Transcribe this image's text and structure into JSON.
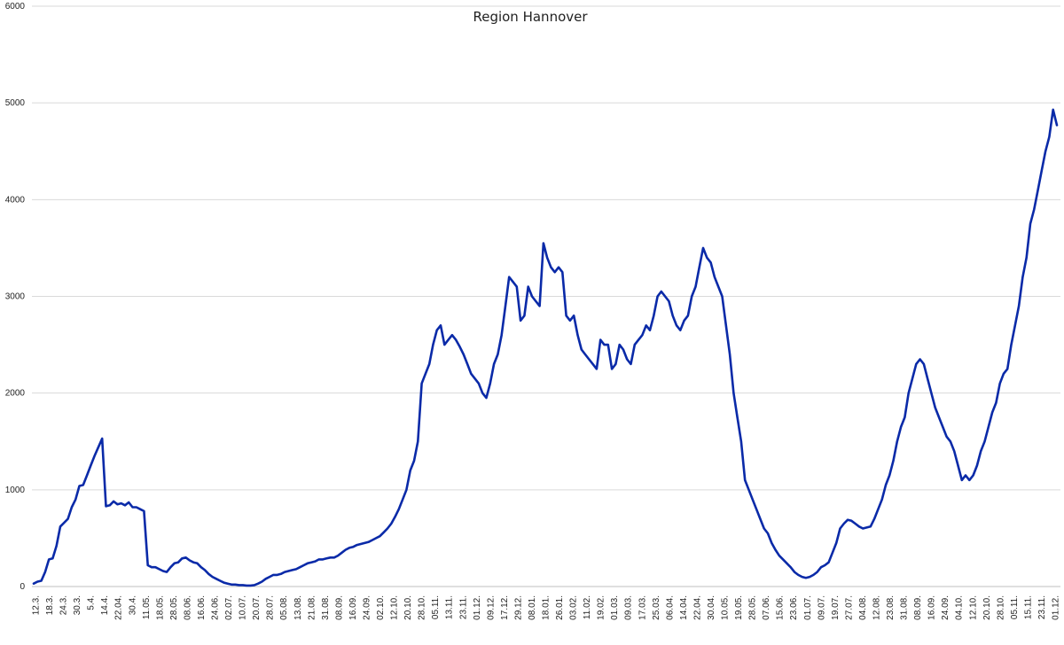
{
  "chart_data": {
    "type": "line",
    "title": "Region Hannover",
    "xlabel": "",
    "ylabel": "",
    "ylim": [
      0,
      6000
    ],
    "yticks": [
      0,
      1000,
      2000,
      3000,
      4000,
      5000,
      6000
    ],
    "grid": true,
    "legend": "none",
    "line_color": "#0a2aa8",
    "x_tick_labels": [
      "12.3.",
      "18.3.",
      "24.3.",
      "30.3.",
      "5.4.",
      "14.4.",
      "22.04.",
      "30.4.",
      "11.05.",
      "18.05.",
      "28.05.",
      "08.06.",
      "16.06.",
      "24.06.",
      "02.07.",
      "10.07.",
      "20.07.",
      "28.07.",
      "05.08.",
      "13.08.",
      "21.08.",
      "31.08.",
      "08.09.",
      "16.09.",
      "24.09.",
      "02.10.",
      "12.10.",
      "20.10.",
      "28.10.",
      "05.11.",
      "13.11.",
      "23.11.",
      "01.12.",
      "09.12.",
      "17.12.",
      "29.12.",
      "08.01.",
      "18.01.",
      "26.01.",
      "03.02.",
      "11.02.",
      "19.02.",
      "01.03.",
      "09.03.",
      "17.03.",
      "25.03.",
      "06.04.",
      "14.04.",
      "22.04.",
      "30.04.",
      "10.05.",
      "19.05.",
      "28.05.",
      "07.06.",
      "15.06.",
      "23.06.",
      "01.07.",
      "09.07.",
      "19.07.",
      "27.07.",
      "04.08.",
      "12.08.",
      "23.08.",
      "31.08.",
      "08.09.",
      "16.09.",
      "24.09.",
      "04.10.",
      "12.10.",
      "20.10.",
      "28.10.",
      "05.11.",
      "15.11.",
      "23.11.",
      "01.12."
    ],
    "series": [
      {
        "values": [
          30,
          50,
          60,
          150,
          280,
          290,
          420,
          620,
          660,
          700,
          820,
          900,
          1040,
          1050,
          1150,
          1250,
          1350,
          1440,
          1530,
          830,
          840,
          880,
          850,
          860,
          840,
          870,
          820,
          820,
          800,
          780,
          220,
          200,
          200,
          180,
          160,
          150,
          200,
          240,
          250,
          290,
          300,
          270,
          250,
          240,
          200,
          170,
          130,
          100,
          80,
          60,
          40,
          30,
          20,
          20,
          15,
          15,
          10,
          10,
          15,
          30,
          50,
          80,
          100,
          120,
          120,
          130,
          150,
          160,
          170,
          180,
          200,
          220,
          240,
          250,
          260,
          280,
          280,
          290,
          300,
          300,
          320,
          350,
          380,
          400,
          410,
          430,
          440,
          450,
          460,
          480,
          500,
          520,
          560,
          600,
          650,
          720,
          800,
          900,
          1000,
          1200,
          1300,
          1500,
          2100,
          2200,
          2300,
          2500,
          2650,
          2700,
          2500,
          2550,
          2600,
          2550,
          2480,
          2400,
          2300,
          2200,
          2150,
          2100,
          2000,
          1950,
          2100,
          2300,
          2400,
          2600,
          2900,
          3200,
          3150,
          3100,
          2750,
          2800,
          3100,
          3000,
          2950,
          2900,
          3550,
          3400,
          3300,
          3250,
          3300,
          3250,
          2800,
          2750,
          2800,
          2600,
          2450,
          2400,
          2350,
          2300,
          2250,
          2550,
          2500,
          2500,
          2250,
          2300,
          2500,
          2450,
          2350,
          2300,
          2500,
          2550,
          2600,
          2700,
          2650,
          2800,
          3000,
          3050,
          3000,
          2950,
          2800,
          2700,
          2650,
          2750,
          2800,
          3000,
          3100,
          3300,
          3500,
          3400,
          3350,
          3200,
          3100,
          3000,
          2700,
          2400,
          2000,
          1750,
          1500,
          1100,
          1000,
          900,
          800,
          700,
          600,
          550,
          450,
          380,
          320,
          280,
          240,
          200,
          150,
          120,
          100,
          90,
          100,
          120,
          150,
          200,
          220,
          250,
          350,
          450,
          600,
          650,
          690,
          680,
          650,
          620,
          600,
          610,
          620,
          700,
          800,
          900,
          1050,
          1150,
          1300,
          1500,
          1650,
          1750,
          2000,
          2150,
          2300,
          2350,
          2300,
          2150,
          2000,
          1850,
          1750,
          1650,
          1550,
          1500,
          1400,
          1250,
          1100,
          1150,
          1100,
          1150,
          1250,
          1400,
          1500,
          1650,
          1800,
          1900,
          2100,
          2200,
          2250,
          2500,
          2700,
          2900,
          3200,
          3400,
          3750,
          3900,
          4100,
          4300,
          4500,
          4650,
          4930,
          4770
        ]
      }
    ]
  }
}
